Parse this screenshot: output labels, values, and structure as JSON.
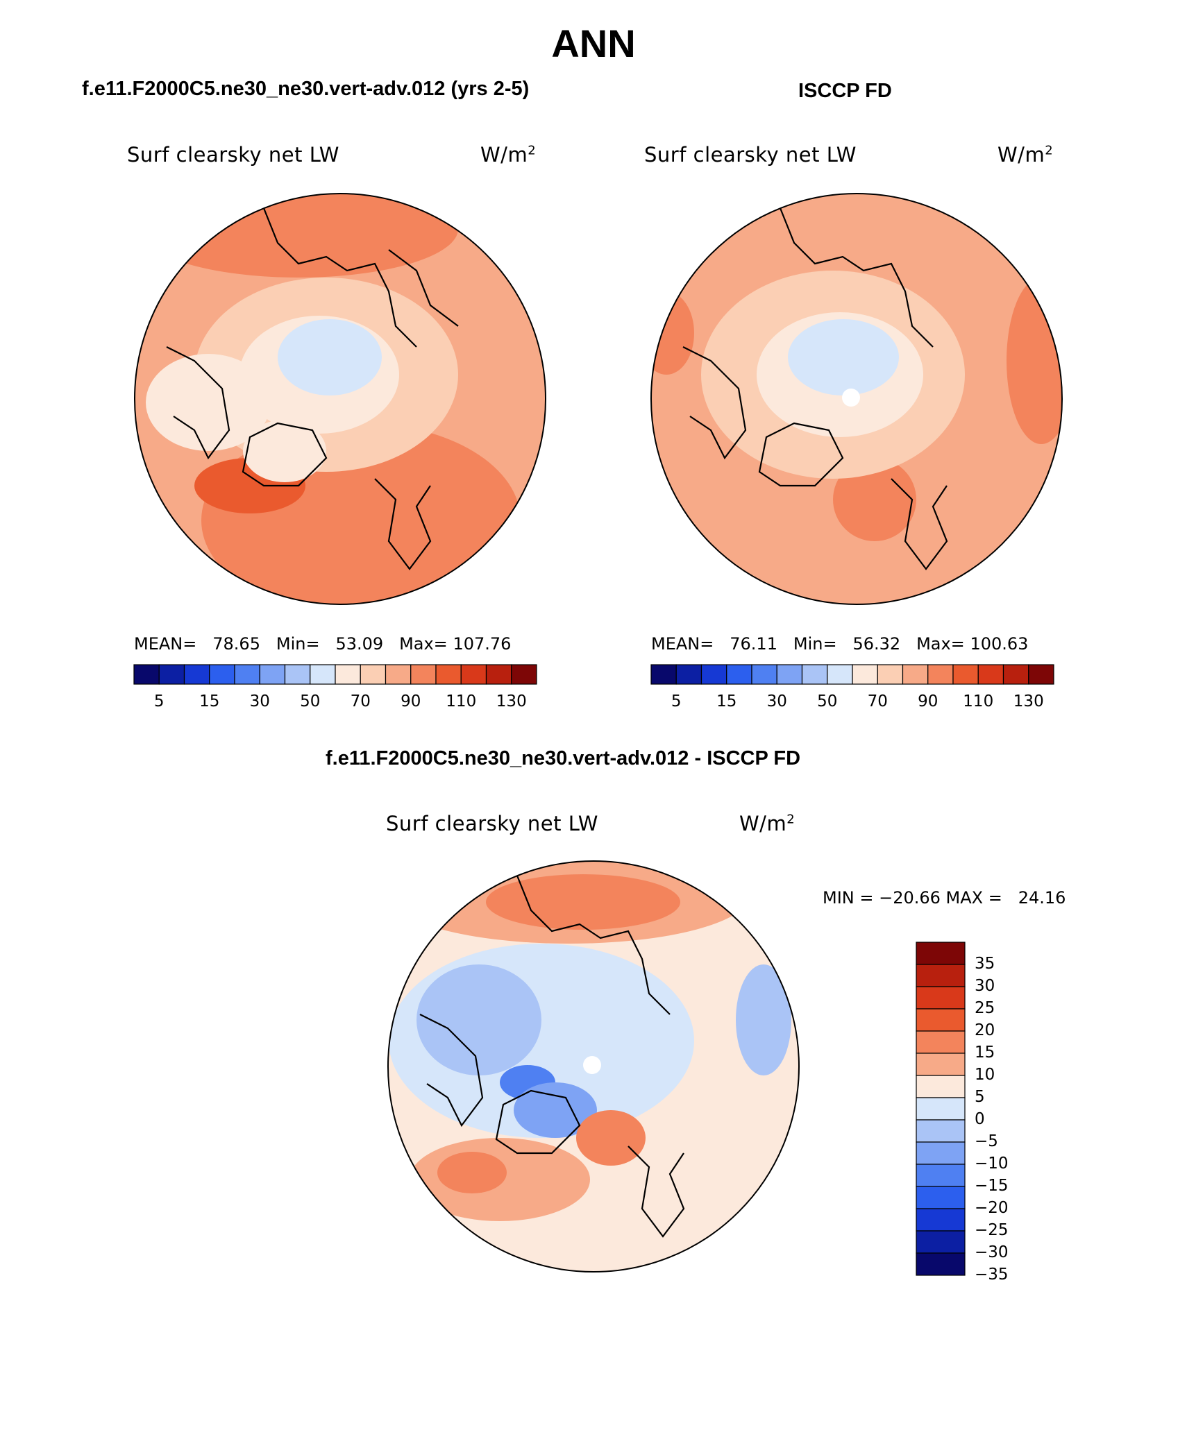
{
  "title": "ANN",
  "panels": [
    {
      "case": "f.e11.F2000C5.ne30_ne30.vert-adv.012 (yrs 2-5)",
      "variable": "Surf clearsky net LW",
      "units": "W/m",
      "units_sup": "2",
      "stats": {
        "mean_label": "MEAN=",
        "mean": "78.65",
        "min_label": "Min=",
        "min": "53.09",
        "max_label": "Max=",
        "max": "107.76"
      }
    },
    {
      "case": "ISCCP FD",
      "variable": "Surf clearsky net LW",
      "units": "W/m",
      "units_sup": "2",
      "stats": {
        "mean_label": "MEAN=",
        "mean": "76.11",
        "min_label": "Min=",
        "min": "56.32",
        "max_label": "Max=",
        "max": "100.63"
      }
    },
    {
      "case": "f.e11.F2000C5.ne30_ne30.vert-adv.012 - ISCCP FD",
      "variable": "Surf clearsky net LW",
      "units": "W/m",
      "units_sup": "2",
      "stats_text": "MIN = −20.66 MAX =   24.16"
    }
  ],
  "colorbar_abs": {
    "colors": [
      "#08086b",
      "#0c1fa3",
      "#1639d4",
      "#2c5fee",
      "#4f80f2",
      "#7ea3f4",
      "#aac4f6",
      "#d6e6fa",
      "#fce9dc",
      "#fbcfb4",
      "#f7aa88",
      "#f3845c",
      "#ea5a2e",
      "#d9391a",
      "#b8200e",
      "#7d0606"
    ],
    "ticks": [
      "5",
      "15",
      "30",
      "50",
      "70",
      "90",
      "110",
      "130"
    ]
  },
  "colorbar_diff": {
    "colors": [
      "#08086b",
      "#0c1fa3",
      "#1639d4",
      "#2c5fee",
      "#4f80f2",
      "#7ea3f4",
      "#aac4f6",
      "#d6e6fa",
      "#fce9dc",
      "#f7aa88",
      "#f3845c",
      "#ea5a2e",
      "#d9391a",
      "#b8200e",
      "#7d0606"
    ],
    "ticks": [
      "35",
      "30",
      "25",
      "20",
      "15",
      "10",
      "5",
      "0",
      "−5",
      "−10",
      "−15",
      "−20",
      "−25",
      "−30",
      "−35"
    ]
  },
  "colors": {
    "ocean_warm": "#f4a07a",
    "land_cool": "#d6e6fa",
    "coast": "#000000"
  }
}
